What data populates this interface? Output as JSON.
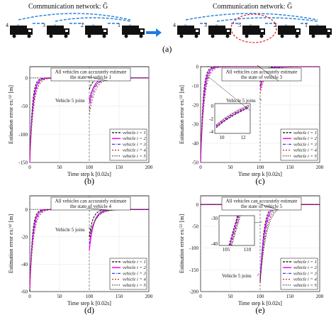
{
  "network": {
    "left_title": "Communication network: Ḡ",
    "right_title": "Communication network: Ḡ",
    "left_vehicles": [
      "4",
      "3",
      "2",
      "1"
    ],
    "right_vehicles": [
      "4",
      "3",
      "5",
      "2",
      "1"
    ],
    "panel_label": "(a)"
  },
  "colors": {
    "vehicle1": "#000000",
    "vehicle2": "#ff00ff",
    "vehicle3": "#3a3adf",
    "vehicle4": "#d61f1f",
    "vehicle5": "#000000",
    "arrow": "#1e7de0",
    "highlight": "#e02020"
  },
  "chart_data": [
    {
      "type": "line",
      "panel": "(b)",
      "ylabel": "Estimation error exᵢ⁽¹⁾ [m]",
      "xlabel": "Time step k [0.02s]",
      "xlim": [
        0,
        200
      ],
      "ylim": [
        -150,
        20
      ],
      "xticks": [
        0,
        50,
        100,
        150,
        200
      ],
      "yticks": [
        -150,
        -100,
        -50,
        0
      ],
      "grid": true,
      "legend_position": "bottom-right",
      "annotations": [
        "All vehicles can accurately estimate",
        "the state of vehicle 1",
        "Vehicle 5 joins"
      ],
      "series": [
        {
          "name": "vehicle i = 1",
          "start": -150,
          "rejoin": -20
        },
        {
          "name": "vehicle i = 2",
          "start": -150,
          "rejoin": -45
        },
        {
          "name": "vehicle i = 3",
          "start": -140,
          "rejoin": -55
        },
        {
          "name": "vehicle i = 4",
          "start": -145,
          "rejoin": -65
        },
        {
          "name": "vehicle i = 5",
          "start": null,
          "rejoin": -35
        }
      ]
    },
    {
      "type": "line",
      "panel": "(c)",
      "ylabel": "Estimation error exᵢ⁽³⁾ [m]",
      "xlabel": "Time step k [0.02s]",
      "xlim": [
        0,
        200
      ],
      "ylim": [
        -50,
        0
      ],
      "xticks": [
        0,
        50,
        100,
        150,
        200
      ],
      "yticks": [
        -50,
        -40,
        -30,
        -20,
        -10,
        0
      ],
      "grid": true,
      "legend_position": "bottom-right",
      "annotations": [
        "All vehicles can accurately estimate",
        "the state of vehicle 3",
        "Vehicle 5 joins"
      ],
      "inset": {
        "xticks": [
          10,
          12
        ],
        "yticks": [
          -4,
          -2,
          0
        ]
      },
      "series": [
        {
          "name": "vehicle i = 1",
          "start": -50,
          "rejoin": -8
        },
        {
          "name": "vehicle i = 2",
          "start": -50,
          "rejoin": -12
        },
        {
          "name": "vehicle i = 3",
          "start": -48,
          "rejoin": -10
        },
        {
          "name": "vehicle i = 4",
          "start": -49,
          "rejoin": -14
        },
        {
          "name": "vehicle i = 5",
          "start": null,
          "rejoin": -10
        }
      ]
    },
    {
      "type": "line",
      "panel": "(d)",
      "ylabel": "Estimation error exᵢ⁽⁴⁾ [m]",
      "xlabel": "Time step k [0.02s]",
      "xlim": [
        0,
        200
      ],
      "ylim": [
        -60,
        10
      ],
      "xticks": [
        0,
        50,
        100,
        150,
        200
      ],
      "yticks": [
        -60,
        -40,
        -20,
        0
      ],
      "grid": true,
      "legend_position": "bottom-right",
      "annotations": [
        "All vehicles can accurately estimate",
        "the state of vehicle 4",
        "Vehicle 5 joins"
      ],
      "series": [
        {
          "name": "vehicle i = 1",
          "start": -60,
          "rejoin": -20
        },
        {
          "name": "vehicle i = 2",
          "start": -58,
          "rejoin": -30
        },
        {
          "name": "vehicle i = 3",
          "start": -55,
          "rejoin": -25
        },
        {
          "name": "vehicle i = 4",
          "start": -57,
          "rejoin": -22
        },
        {
          "name": "vehicle i = 5",
          "start": null,
          "rejoin": -20
        }
      ]
    },
    {
      "type": "line",
      "panel": "(e)",
      "ylabel": "Estimation error exᵢ⁽⁵⁾ [m]",
      "xlabel": "Time step k [0.02s]",
      "xlim": [
        0,
        200
      ],
      "ylim": [
        -200,
        20
      ],
      "xticks": [
        0,
        50,
        100,
        150,
        200
      ],
      "yticks": [
        -200,
        -150,
        -100,
        -50,
        0
      ],
      "grid": true,
      "legend_position": "bottom-right",
      "annotations": [
        "All vehicles can accurately estimate",
        "the state of vehicle 5",
        "Vehicle 5 joins"
      ],
      "inset": {
        "xticks": [
          105,
          110
        ],
        "yticks": [
          -40,
          -30
        ]
      },
      "series": [
        {
          "name": "vehicle i = 1",
          "start": null,
          "rejoin": -180
        },
        {
          "name": "vehicle i = 2",
          "start": null,
          "rejoin": -175
        },
        {
          "name": "vehicle i = 3",
          "start": null,
          "rejoin": -170
        },
        {
          "name": "vehicle i = 4",
          "start": null,
          "rejoin": -178
        },
        {
          "name": "vehicle i = 5",
          "start": null,
          "rejoin": -180
        }
      ]
    }
  ]
}
